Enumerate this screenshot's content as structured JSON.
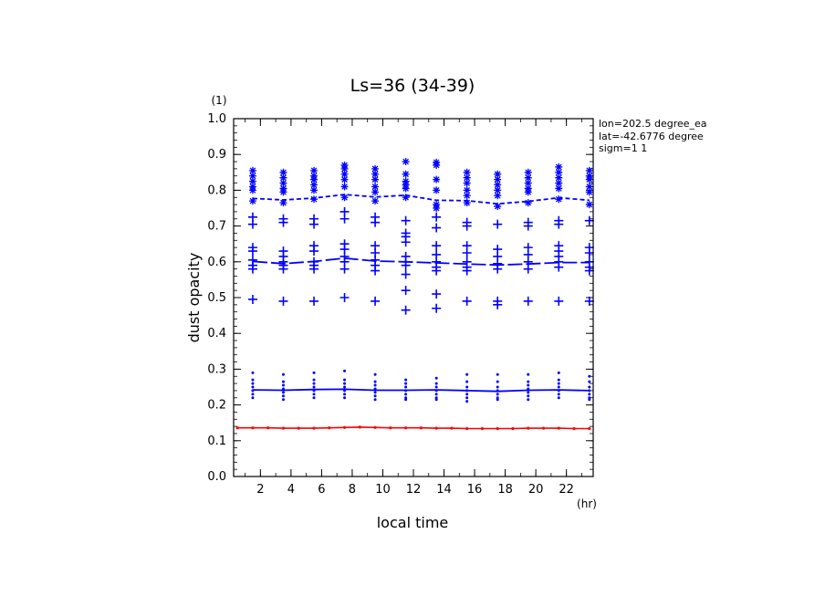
{
  "chart_data": {
    "type": "line",
    "title": "Ls=36 (34-39)",
    "xlabel": "local time",
    "ylabel": "dust opacity",
    "x_unit": "(hr)",
    "y_unit": "(1)",
    "xlim": [
      0.25,
      23.75
    ],
    "ylim": [
      0.0,
      1.0
    ],
    "xticks": [
      2,
      4,
      6,
      8,
      10,
      12,
      14,
      16,
      18,
      20,
      22
    ],
    "xtick_labels": [
      "2",
      "4",
      "6",
      "8",
      "10",
      "12",
      "14",
      "16",
      "18",
      "20",
      "22"
    ],
    "yticks": [
      0.0,
      0.1,
      0.2,
      0.3,
      0.4,
      0.5,
      0.6,
      0.7,
      0.8,
      0.9,
      1.0
    ],
    "ytick_labels": [
      "0.0",
      "0.1",
      "0.2",
      "0.3",
      "0.4",
      "0.5",
      "0.6",
      "0.7",
      "0.8",
      "0.9",
      "1.0"
    ],
    "info_lines": [
      "lon=202.5 degree_ea",
      "lat=-42.6776 degree",
      "sigm=1 1"
    ],
    "grid": false,
    "colors": {
      "blue": "#0000ff",
      "red": "#ff0000",
      "axis": "#000000"
    },
    "series": [
      {
        "style": "dashed",
        "color": "#0000ff",
        "x": [
          1.5,
          3.5,
          5.5,
          7.5,
          9.5,
          11.5,
          13.5,
          15.5,
          17.5,
          19.5,
          21.5,
          23.5
        ],
        "values": [
          0.777,
          0.773,
          0.778,
          0.788,
          0.781,
          0.786,
          0.772,
          0.771,
          0.762,
          0.769,
          0.779,
          0.772
        ]
      },
      {
        "style": "long-dash",
        "color": "#0000ff",
        "x": [
          1.5,
          3.5,
          5.5,
          7.5,
          9.5,
          11.5,
          13.5,
          15.5,
          17.5,
          19.5,
          21.5,
          23.5
        ],
        "values": [
          0.601,
          0.595,
          0.601,
          0.61,
          0.602,
          0.6,
          0.597,
          0.594,
          0.591,
          0.594,
          0.598,
          0.598
        ]
      },
      {
        "style": "solid",
        "color": "#0000ff",
        "x": [
          1.5,
          3.5,
          5.5,
          7.5,
          9.5,
          11.5,
          13.5,
          15.5,
          17.5,
          19.5,
          21.5,
          23.5
        ],
        "values": [
          0.242,
          0.241,
          0.243,
          0.244,
          0.241,
          0.241,
          0.242,
          0.24,
          0.238,
          0.241,
          0.242,
          0.24
        ]
      },
      {
        "style": "solid-dots",
        "color": "#ff0000",
        "x": [
          0.5,
          1.5,
          2.5,
          3.5,
          4.5,
          5.5,
          6.5,
          7.5,
          8.5,
          9.5,
          10.5,
          11.5,
          12.5,
          13.5,
          14.5,
          15.5,
          16.5,
          17.5,
          18.5,
          19.5,
          20.5,
          21.5,
          22.5,
          23.5
        ],
        "values": [
          0.136,
          0.136,
          0.136,
          0.135,
          0.135,
          0.135,
          0.136,
          0.137,
          0.138,
          0.137,
          0.136,
          0.136,
          0.136,
          0.135,
          0.135,
          0.134,
          0.134,
          0.134,
          0.134,
          0.135,
          0.135,
          0.135,
          0.134,
          0.134
        ]
      }
    ],
    "scatter_series": [
      {
        "marker": "asterisk",
        "color": "#0000ff",
        "x": [
          1.5,
          1.5,
          1.5,
          1.5,
          1.5,
          1.5,
          3.5,
          3.5,
          3.5,
          3.5,
          3.5,
          3.5,
          5.5,
          5.5,
          5.5,
          5.5,
          5.5,
          5.5,
          7.5,
          7.5,
          7.5,
          7.5,
          7.5,
          7.5,
          9.5,
          9.5,
          9.5,
          9.5,
          9.5,
          9.5,
          11.5,
          11.5,
          11.5,
          11.5,
          11.5,
          11.5,
          13.5,
          13.5,
          13.5,
          13.5,
          13.5,
          13.5,
          15.5,
          15.5,
          15.5,
          15.5,
          15.5,
          15.5,
          17.5,
          17.5,
          17.5,
          17.5,
          17.5,
          17.5,
          19.5,
          19.5,
          19.5,
          19.5,
          19.5,
          19.5,
          21.5,
          21.5,
          21.5,
          21.5,
          21.5,
          21.5,
          23.5,
          23.5,
          23.5,
          23.5,
          23.5,
          23.5
        ],
        "y": [
          0.855,
          0.84,
          0.825,
          0.81,
          0.8,
          0.77,
          0.85,
          0.835,
          0.82,
          0.805,
          0.795,
          0.765,
          0.855,
          0.84,
          0.83,
          0.815,
          0.8,
          0.775,
          0.87,
          0.86,
          0.845,
          0.83,
          0.81,
          0.78,
          0.86,
          0.845,
          0.83,
          0.81,
          0.795,
          0.77,
          0.88,
          0.845,
          0.825,
          0.815,
          0.805,
          0.78,
          0.878,
          0.87,
          0.83,
          0.8,
          0.76,
          0.75,
          0.85,
          0.835,
          0.82,
          0.8,
          0.785,
          0.765,
          0.845,
          0.83,
          0.815,
          0.8,
          0.785,
          0.755,
          0.85,
          0.835,
          0.82,
          0.805,
          0.795,
          0.765,
          0.865,
          0.85,
          0.835,
          0.82,
          0.805,
          0.775,
          0.855,
          0.84,
          0.83,
          0.81,
          0.795,
          0.76
        ]
      },
      {
        "marker": "plus",
        "color": "#0000ff",
        "x": [
          1.5,
          1.5,
          1.5,
          1.5,
          1.5,
          1.5,
          1.5,
          1.5,
          3.5,
          3.5,
          3.5,
          3.5,
          3.5,
          3.5,
          3.5,
          3.5,
          5.5,
          5.5,
          5.5,
          5.5,
          5.5,
          5.5,
          5.5,
          5.5,
          7.5,
          7.5,
          7.5,
          7.5,
          7.5,
          7.5,
          7.5,
          7.5,
          9.5,
          9.5,
          9.5,
          9.5,
          9.5,
          9.5,
          9.5,
          9.5,
          11.5,
          11.5,
          11.5,
          11.5,
          11.5,
          11.5,
          11.5,
          11.5,
          11.5,
          11.5,
          13.5,
          13.5,
          13.5,
          13.5,
          13.5,
          13.5,
          13.5,
          13.5,
          13.5,
          15.5,
          15.5,
          15.5,
          15.5,
          15.5,
          15.5,
          15.5,
          15.5,
          17.5,
          17.5,
          17.5,
          17.5,
          17.5,
          17.5,
          17.5,
          19.5,
          19.5,
          19.5,
          19.5,
          19.5,
          19.5,
          19.5,
          21.5,
          21.5,
          21.5,
          21.5,
          21.5,
          21.5,
          21.5,
          21.5,
          23.5,
          23.5,
          23.5,
          23.5,
          23.5,
          23.5,
          23.5
        ],
        "y": [
          0.725,
          0.705,
          0.64,
          0.63,
          0.605,
          0.59,
          0.58,
          0.495,
          0.71,
          0.63,
          0.615,
          0.6,
          0.59,
          0.58,
          0.49,
          0.72,
          0.72,
          0.705,
          0.645,
          0.63,
          0.6,
          0.59,
          0.58,
          0.49,
          0.74,
          0.72,
          0.65,
          0.635,
          0.615,
          0.6,
          0.58,
          0.5,
          0.71,
          0.645,
          0.625,
          0.605,
          0.59,
          0.575,
          0.49,
          0.725,
          0.715,
          0.68,
          0.67,
          0.655,
          0.615,
          0.6,
          0.59,
          0.565,
          0.52,
          0.465,
          0.725,
          0.695,
          0.645,
          0.62,
          0.6,
          0.585,
          0.575,
          0.51,
          0.47,
          0.71,
          0.7,
          0.645,
          0.625,
          0.6,
          0.585,
          0.575,
          0.49,
          0.705,
          0.635,
          0.615,
          0.595,
          0.58,
          0.49,
          0.48,
          0.71,
          0.7,
          0.64,
          0.62,
          0.6,
          0.58,
          0.49,
          0.715,
          0.705,
          0.645,
          0.63,
          0.615,
          0.6,
          0.585,
          0.49,
          0.715,
          0.64,
          0.625,
          0.6,
          0.585,
          0.575,
          0.49
        ]
      },
      {
        "marker": "dot",
        "color": "#0000ff",
        "x": [
          1.5,
          1.5,
          1.5,
          1.5,
          1.5,
          1.5,
          1.5,
          3.5,
          3.5,
          3.5,
          3.5,
          3.5,
          3.5,
          3.5,
          5.5,
          5.5,
          5.5,
          5.5,
          5.5,
          5.5,
          5.5,
          7.5,
          7.5,
          7.5,
          7.5,
          7.5,
          7.5,
          7.5,
          9.5,
          9.5,
          9.5,
          9.5,
          9.5,
          9.5,
          9.5,
          11.5,
          11.5,
          11.5,
          11.5,
          11.5,
          11.5,
          11.5,
          13.5,
          13.5,
          13.5,
          13.5,
          13.5,
          13.5,
          13.5,
          15.5,
          15.5,
          15.5,
          15.5,
          15.5,
          15.5,
          15.5,
          17.5,
          17.5,
          17.5,
          17.5,
          17.5,
          17.5,
          17.5,
          19.5,
          19.5,
          19.5,
          19.5,
          19.5,
          19.5,
          19.5,
          21.5,
          21.5,
          21.5,
          21.5,
          21.5,
          21.5,
          21.5,
          23.5,
          23.5,
          23.5,
          23.5,
          23.5,
          23.5,
          23.5
        ],
        "y": [
          0.29,
          0.27,
          0.26,
          0.25,
          0.24,
          0.23,
          0.22,
          0.285,
          0.265,
          0.255,
          0.245,
          0.235,
          0.225,
          0.215,
          0.29,
          0.27,
          0.26,
          0.25,
          0.24,
          0.23,
          0.22,
          0.295,
          0.27,
          0.26,
          0.25,
          0.24,
          0.23,
          0.22,
          0.285,
          0.265,
          0.255,
          0.245,
          0.235,
          0.225,
          0.215,
          0.27,
          0.26,
          0.25,
          0.24,
          0.23,
          0.22,
          0.215,
          0.275,
          0.26,
          0.25,
          0.24,
          0.23,
          0.22,
          0.215,
          0.285,
          0.265,
          0.25,
          0.24,
          0.23,
          0.22,
          0.21,
          0.285,
          0.265,
          0.25,
          0.24,
          0.23,
          0.22,
          0.215,
          0.285,
          0.265,
          0.255,
          0.245,
          0.235,
          0.225,
          0.215,
          0.29,
          0.27,
          0.26,
          0.25,
          0.24,
          0.23,
          0.22,
          0.28,
          0.265,
          0.25,
          0.24,
          0.23,
          0.22,
          0.215
        ]
      }
    ]
  }
}
